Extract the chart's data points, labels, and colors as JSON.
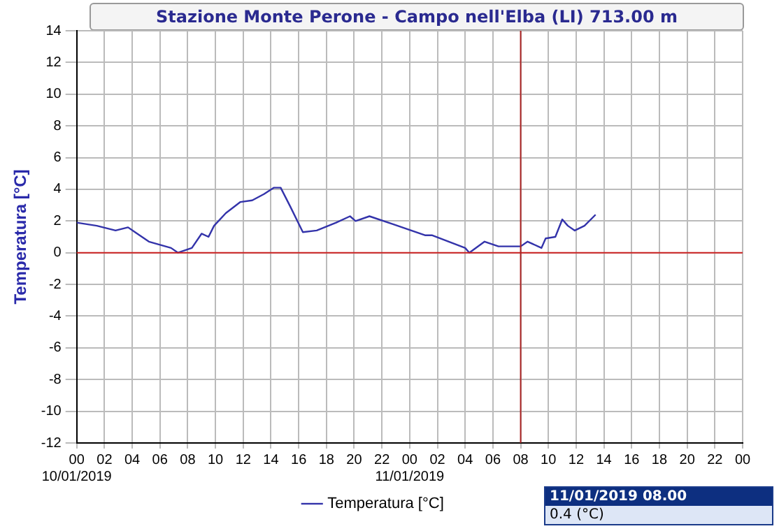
{
  "chart_data": {
    "type": "line",
    "title": "Stazione Monte Perone - Campo nell'Elba (LI) 713.00 m",
    "ylabel": "Temperatura [°C]",
    "x": [
      "2019-01-10T00:00",
      "2019-01-10T01:27",
      "2019-01-10T02:48",
      "2019-01-10T03:42",
      "2019-01-10T04:12",
      "2019-01-10T05:12",
      "2019-01-10T06:48",
      "2019-01-10T07:18",
      "2019-01-10T08:18",
      "2019-01-10T09:00",
      "2019-01-10T09:30",
      "2019-01-10T09:54",
      "2019-01-10T10:45",
      "2019-01-10T11:48",
      "2019-01-10T12:39",
      "2019-01-10T13:30",
      "2019-01-10T14:12",
      "2019-01-10T14:42",
      "2019-01-10T15:24",
      "2019-01-10T16:18",
      "2019-01-10T17:18",
      "2019-01-10T18:42",
      "2019-01-10T19:42",
      "2019-01-10T20:06",
      "2019-01-10T21:06",
      "2019-01-10T22:48",
      "2019-01-11T01:06",
      "2019-01-11T01:36",
      "2019-01-11T04:00",
      "2019-01-11T04:18",
      "2019-01-11T05:24",
      "2019-01-11T06:24",
      "2019-01-11T07:48",
      "2019-01-11T08:00",
      "2019-01-11T08:30",
      "2019-01-11T09:30",
      "2019-01-11T09:48",
      "2019-01-11T10:30",
      "2019-01-11T11:00",
      "2019-01-11T11:24",
      "2019-01-11T11:54",
      "2019-01-11T12:36",
      "2019-01-11T13:24"
    ],
    "series": [
      {
        "name": "Temperatura [°C]",
        "color": "#3333aa",
        "values": [
          1.9,
          1.7,
          1.4,
          1.6,
          1.3,
          0.7,
          0.3,
          0.0,
          0.3,
          1.2,
          1.0,
          1.7,
          2.5,
          3.2,
          3.3,
          3.7,
          4.1,
          4.1,
          2.9,
          1.3,
          1.4,
          1.9,
          2.3,
          2.0,
          2.3,
          1.8,
          1.1,
          1.1,
          0.3,
          0.0,
          0.7,
          0.4,
          0.4,
          0.4,
          0.7,
          0.3,
          0.9,
          1.0,
          2.1,
          1.7,
          1.4,
          1.7,
          2.4
        ]
      }
    ],
    "xlim": [
      "2019-01-10T00:00",
      "2019-01-12T00:00"
    ],
    "xticks": [
      {
        "value": "2019-01-10T00:00",
        "label": "00\n10/01/2019"
      },
      {
        "value": "2019-01-10T02:00",
        "label": "02"
      },
      {
        "value": "2019-01-10T04:00",
        "label": "04"
      },
      {
        "value": "2019-01-10T06:00",
        "label": "06"
      },
      {
        "value": "2019-01-10T08:00",
        "label": "08"
      },
      {
        "value": "2019-01-10T10:00",
        "label": "10"
      },
      {
        "value": "2019-01-10T12:00",
        "label": "12"
      },
      {
        "value": "2019-01-10T14:00",
        "label": "14"
      },
      {
        "value": "2019-01-10T16:00",
        "label": "16"
      },
      {
        "value": "2019-01-10T18:00",
        "label": "18"
      },
      {
        "value": "2019-01-10T20:00",
        "label": "20"
      },
      {
        "value": "2019-01-10T22:00",
        "label": "22"
      },
      {
        "value": "2019-01-11T00:00",
        "label": "00\n11/01/2019"
      },
      {
        "value": "2019-01-11T02:00",
        "label": "02"
      },
      {
        "value": "2019-01-11T04:00",
        "label": "04"
      },
      {
        "value": "2019-01-11T06:00",
        "label": "06"
      },
      {
        "value": "2019-01-11T08:00",
        "label": "08"
      },
      {
        "value": "2019-01-11T10:00",
        "label": "10"
      },
      {
        "value": "2019-01-11T12:00",
        "label": "12"
      },
      {
        "value": "2019-01-11T14:00",
        "label": "14"
      },
      {
        "value": "2019-01-11T16:00",
        "label": "16"
      },
      {
        "value": "2019-01-11T18:00",
        "label": "18"
      },
      {
        "value": "2019-01-11T20:00",
        "label": "20"
      },
      {
        "value": "2019-01-11T22:00",
        "label": "22"
      },
      {
        "value": "2019-01-12T00:00",
        "label": "00"
      }
    ],
    "ylim": [
      -12,
      14
    ],
    "yticks": [
      -12,
      -10,
      -8,
      -6,
      -4,
      -2,
      0,
      2,
      4,
      6,
      8,
      10,
      12,
      14
    ],
    "ref_lines": [
      {
        "axis": "y",
        "value": 0,
        "color": "#cc2222"
      },
      {
        "axis": "x",
        "value": "2019-01-11T08:00",
        "color": "#aa2222"
      }
    ],
    "annotations": [
      "11/01/2019 08.00",
      "0.4 (°C)"
    ],
    "grid": true,
    "legend": "bottom",
    "marker": "none",
    "line_style": "solid"
  }
}
